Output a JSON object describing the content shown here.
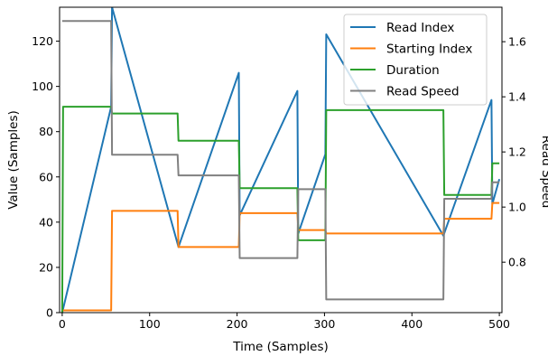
{
  "chart_data": {
    "type": "line",
    "xlabel": "Time (Samples)",
    "ylabel": "Value (Samples)",
    "y2label": "Read Speed",
    "xlim": [
      -3,
      503
    ],
    "ylim": [
      0,
      135
    ],
    "y2lim": [
      0.617,
      1.725
    ],
    "xticks": [
      0,
      100,
      200,
      300,
      400,
      500
    ],
    "yticks": [
      0,
      20,
      40,
      60,
      80,
      100,
      120
    ],
    "y2ticks": [
      0.8,
      1.0,
      1.2,
      1.4,
      1.6
    ],
    "y2tick_labels": [
      "0.8",
      "1.0",
      "1.2",
      "1.4",
      "1.6"
    ],
    "legend_position": "upper-right",
    "series": [
      {
        "name": "Read Index",
        "axis": "left",
        "color": "#1f77b4",
        "x": [
          0,
          56,
          57,
          133,
          202,
          203,
          269,
          270,
          301,
          302,
          436,
          491,
          492,
          500
        ],
        "y": [
          0,
          91,
          135,
          29,
          106,
          43,
          98,
          35,
          70,
          123,
          34,
          94,
          48,
          59
        ]
      },
      {
        "name": "Starting Index",
        "axis": "left",
        "color": "#ff7f0e",
        "x": [
          0,
          56,
          57,
          132,
          133,
          202,
          203,
          269,
          270,
          301,
          302,
          436,
          437,
          491,
          492,
          500
        ],
        "y": [
          1,
          1,
          45,
          45,
          29,
          29,
          44,
          44,
          36.5,
          36.5,
          35,
          35,
          41.5,
          41.5,
          48.5,
          48.5
        ]
      },
      {
        "name": "Duration",
        "axis": "left",
        "color": "#2ca02c",
        "x": [
          0,
          1,
          56,
          57,
          132,
          133,
          202,
          203,
          269,
          270,
          301,
          302,
          436,
          437,
          491,
          492,
          500
        ],
        "y": [
          0,
          91,
          91,
          88,
          88,
          76,
          76,
          55,
          55,
          32,
          32,
          89.5,
          89.5,
          52,
          52,
          66,
          66
        ]
      },
      {
        "name": "Read Speed",
        "axis": "right",
        "color": "#808080",
        "x": [
          0,
          56,
          57,
          132,
          133,
          202,
          203,
          269,
          270,
          301,
          302,
          436,
          437,
          491,
          492,
          500
        ],
        "y": [
          1.675,
          1.675,
          1.19,
          1.19,
          1.115,
          1.115,
          0.815,
          0.815,
          1.065,
          1.065,
          0.665,
          0.665,
          1.03,
          1.03,
          1.09,
          1.09
        ]
      }
    ]
  }
}
